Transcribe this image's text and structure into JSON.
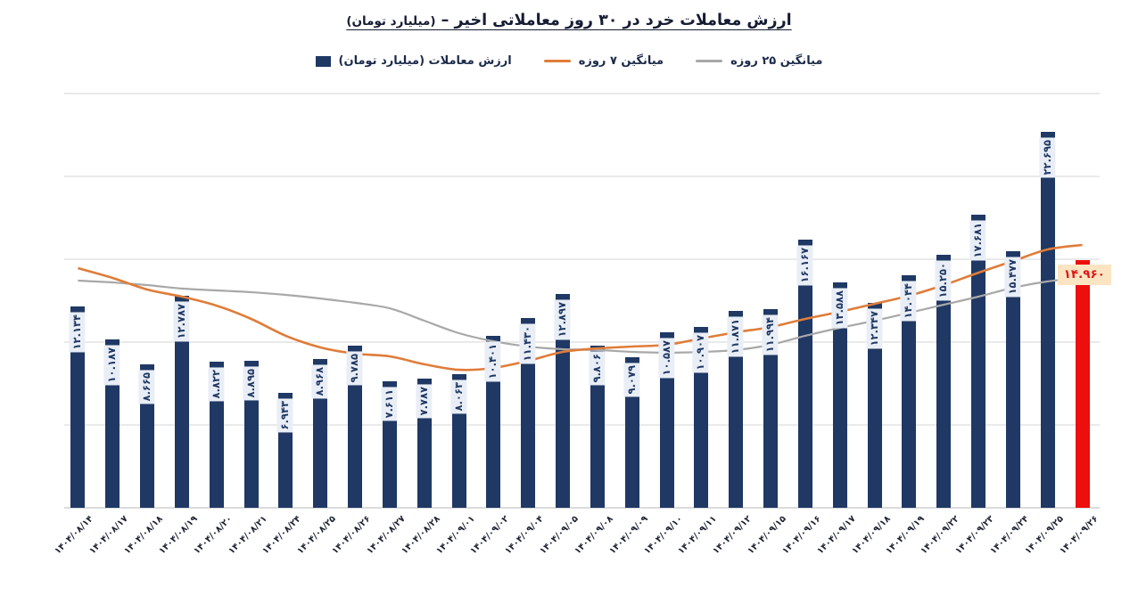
{
  "title": {
    "main": "ارزش معاملات خرد در ۳۰ روز معاملاتی اخیر –",
    "unit": "(میلیارد تومان)"
  },
  "chart_data": {
    "type": "bar+line",
    "title": "ارزش معاملات خرد در ۳۰ روز معاملاتی اخیر – (میلیارد تومان)",
    "legend_position": "top",
    "grid": "horizontal",
    "grid_step": 5000,
    "ylim": [
      0,
      25300
    ],
    "y_axis_labels": "none",
    "categories": [
      "۱۴۰۴/۰۸/۱۴",
      "۱۴۰۴/۰۸/۱۷",
      "۱۴۰۴/۰۸/۱۸",
      "۱۴۰۴/۰۸/۱۹",
      "۱۴۰۴/۰۸/۲۰",
      "۱۴۰۴/۰۸/۲۱",
      "۱۴۰۴/۰۸/۲۴",
      "۱۴۰۴/۰۸/۲۵",
      "۱۴۰۴/۰۸/۲۶",
      "۱۴۰۴/۰۸/۲۷",
      "۱۴۰۴/۰۸/۲۸",
      "۱۴۰۴/۰۹/۰۱",
      "۱۴۰۴/۰۹/۰۲",
      "۱۴۰۴/۰۹/۰۴",
      "۱۴۰۴/۰۹/۰۵",
      "۱۴۰۴/۰۹/۰۸",
      "۱۴۰۴/۰۹/۰۹",
      "۱۴۰۴/۰۹/۱۰",
      "۱۴۰۴/۰۹/۱۱",
      "۱۴۰۴/۰۹/۱۲",
      "۱۴۰۴/۰۹/۱۵",
      "۱۴۰۴/۰۹/۱۶",
      "۱۴۰۴/۰۹/۱۷",
      "۱۴۰۴/۰۹/۱۸",
      "۱۴۰۴/۰۹/۱۹",
      "۱۴۰۴/۰۹/۲۲",
      "۱۴۰۴/۰۹/۲۳",
      "۱۴۰۴/۰۹/۲۴",
      "۱۴۰۴/۰۹/۲۵",
      "۱۴۰۴/۰۹/۲۶"
    ],
    "series": [
      {
        "name": "ارزش معاملات (میلیارد تومان)",
        "type": "bar",
        "color": "#1f3864",
        "values": [
          12134,
          10187,
          8665,
          12787,
          8822,
          8895,
          6943,
          8968,
          9785,
          7611,
          7787,
          8063,
          10401,
          11430,
          12897,
          9806,
          9079,
          10587,
          10907,
          11871,
          11994,
          16167,
          13588,
          12347,
          14044,
          15250,
          17681,
          15477,
          22695,
          14960
        ],
        "value_labels": [
          "۱۲.۱۳۴",
          "۱۰.۱۸۷",
          "۸.۶۶۵",
          "۱۲.۷۸۷",
          "۸.۸۲۲",
          "۸.۸۹۵",
          "۶.۹۴۳",
          "۸.۹۶۸",
          "۹.۷۸۵",
          "۷.۶۱۱",
          "۷.۷۸۷",
          "۸.۰۶۳",
          "۱۰.۴۰۱",
          "۱۱.۴۳۰",
          "۱۲.۸۹۷",
          "۹.۸۰۶",
          "۹.۰۷۹",
          "۱۰.۵۸۷",
          "۱۰.۹۰۷",
          "۱۱.۸۷۱",
          "۱۱.۹۹۴",
          "۱۶.۱۶۷",
          "۱۳.۵۸۸",
          "۱۲.۳۴۷",
          "۱۴.۰۴۴",
          "۱۵.۲۵۰",
          "۱۷.۶۸۱",
          "۱۵.۴۷۷",
          "۲۲.۶۹۵",
          "۱۴.۹۶۰"
        ]
      },
      {
        "name": "میانگین ۷ روزه",
        "type": "line",
        "color": "#df7c39",
        "values": [
          14460,
          13870,
          13170,
          12740,
          12200,
          11400,
          10380,
          9680,
          9300,
          9140,
          8660,
          8330,
          8440,
          8870,
          9410,
          9620,
          9730,
          9840,
          10220,
          10590,
          10910,
          11400,
          11830,
          12310,
          12800,
          13440,
          14190,
          14890,
          15590,
          15860
        ]
      },
      {
        "name": "میانگین ۲۵ روزه",
        "type": "line",
        "color": "#a8a8a8",
        "values": [
          13710,
          13600,
          13440,
          13230,
          13120,
          13010,
          12850,
          12630,
          12370,
          12040,
          11290,
          10540,
          10050,
          9730,
          9570,
          9520,
          9410,
          9360,
          9410,
          9520,
          9840,
          10380,
          10860,
          11290,
          11770,
          12260,
          12740,
          13280,
          13660,
          13870
        ]
      }
    ],
    "highlight": {
      "index": 29,
      "bar_color": "#ed0e0e",
      "label": "۱۴.۹۶۰",
      "label_bg": "#fbe4c2",
      "label_color": "#e01818"
    },
    "style": {
      "bar_label_bg": "#e9eef6",
      "bar_label_color": "#1f3864",
      "grid_color": "#dedede",
      "axis_color": "#c5c5c5"
    }
  }
}
